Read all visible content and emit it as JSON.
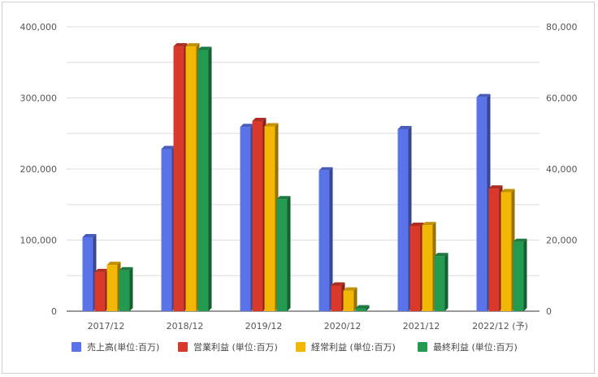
{
  "chart_data": {
    "type": "bar",
    "categories": [
      "2017/12",
      "2018/12",
      "2019/12",
      "2020/12",
      "2021/12",
      "2022/12 (予)"
    ],
    "series": [
      {
        "name": "売上高(単位:百万)",
        "axis": "left",
        "color": "#5b73e8",
        "values": [
          104000,
          228000,
          259000,
          198000,
          256000,
          301000
        ]
      },
      {
        "name": "営業利益 (単位:百万)",
        "axis": "right",
        "color": "#d9392b",
        "values": [
          11000,
          74500,
          53500,
          7200,
          24000,
          34500
        ]
      },
      {
        "name": "経常利益 (単位:百万)",
        "axis": "right",
        "color": "#f2b705",
        "values": [
          13000,
          74500,
          52000,
          5800,
          24200,
          33500
        ]
      },
      {
        "name": "最終利益 (単位:百万)",
        "axis": "right",
        "color": "#249a51",
        "values": [
          11500,
          73500,
          31500,
          800,
          15500,
          19500
        ]
      }
    ],
    "y_left": {
      "ylim": [
        0,
        400000
      ],
      "ticks": [
        "0",
        "100,000",
        "200,000",
        "300,000",
        "400,000"
      ]
    },
    "y_right": {
      "ylim": [
        0,
        80000
      ],
      "ticks": [
        "0",
        "20,000",
        "40,000",
        "60,000",
        "80,000"
      ]
    },
    "grid": true,
    "legend_position": "bottom"
  }
}
